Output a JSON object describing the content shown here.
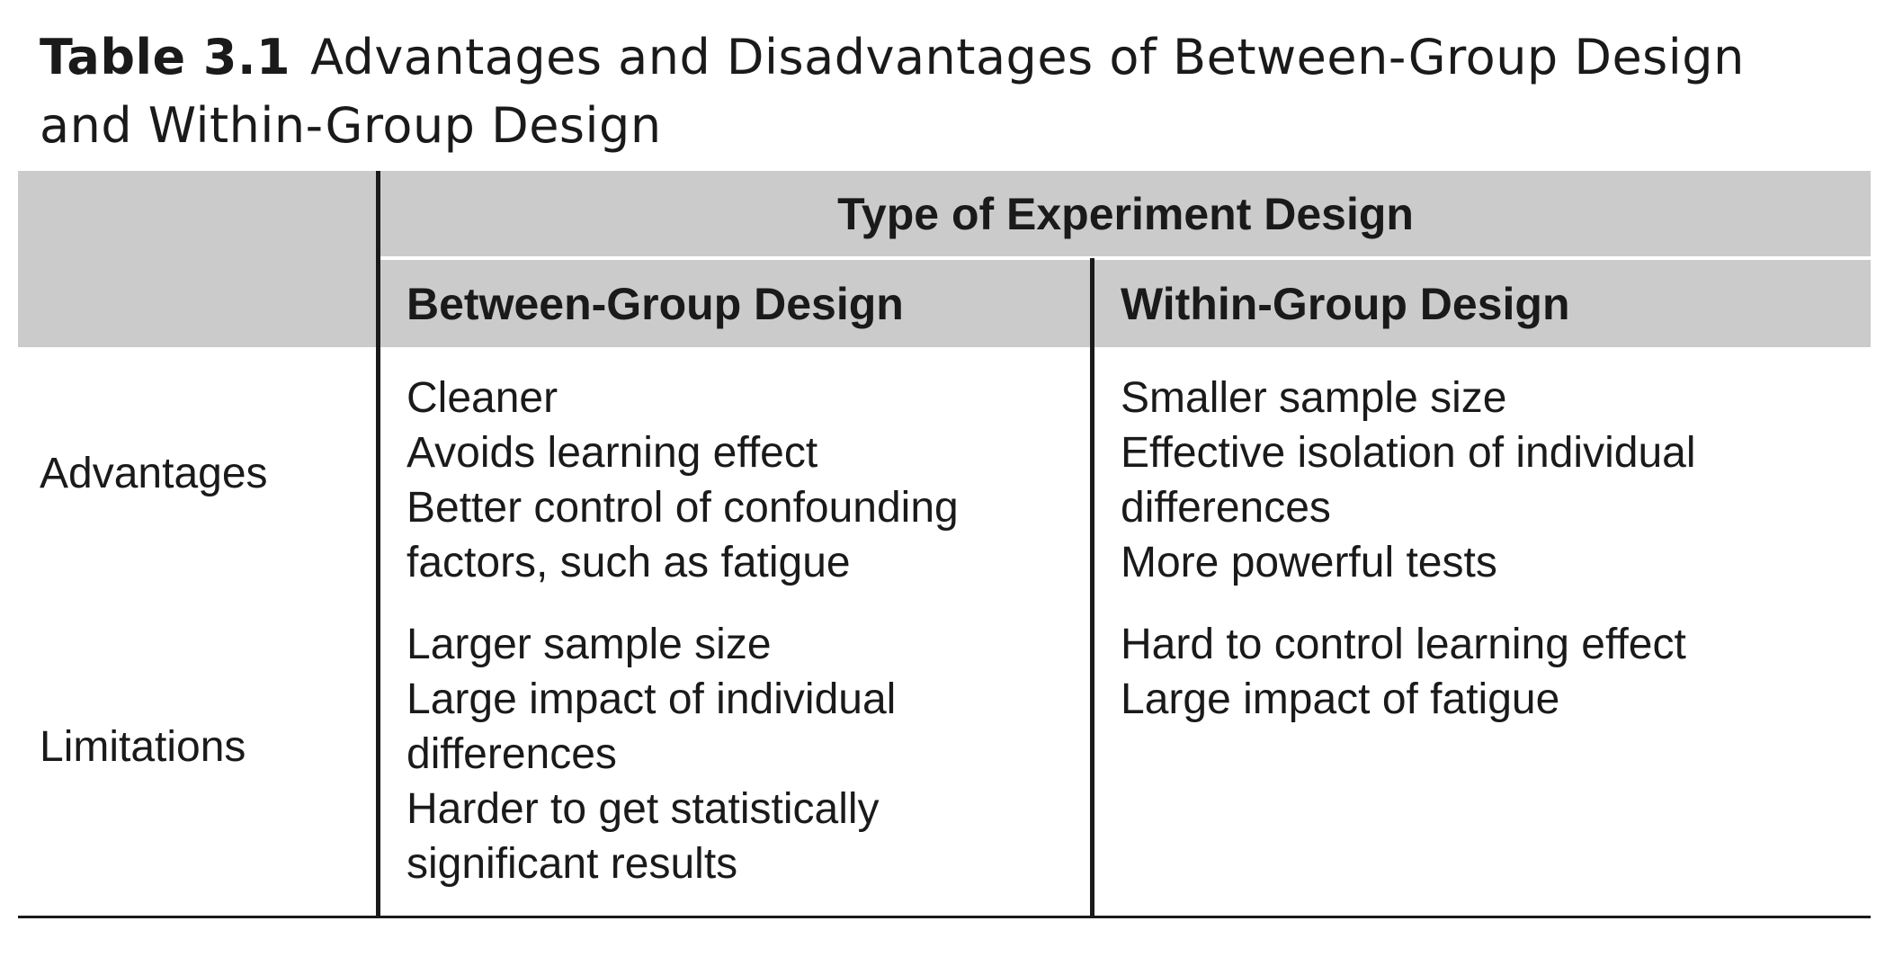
{
  "caption": {
    "label": "Table 3.1",
    "title": "Advantages and Disadvantages of Between-Group Design and Within-Group Design"
  },
  "table": {
    "group_header": "Type of Experiment Design",
    "columns": [
      "Between-Group Design",
      "Within-Group Design"
    ],
    "rows": [
      {
        "label": "Advantages",
        "between": [
          "Cleaner",
          "Avoids learning effect",
          "Better control of confounding factors, such as fatigue"
        ],
        "within": [
          "Smaller sample size",
          "Effective isolation of individual differences",
          "More powerful tests"
        ]
      },
      {
        "label": "Limitations",
        "between": [
          "Larger sample size",
          "Large impact of individual differences",
          "Harder to get statistically significant results"
        ],
        "within": [
          "Hard to control learning effect",
          "Large impact of fatigue"
        ]
      }
    ]
  },
  "colors": {
    "header_band": "#cbcbcb",
    "rule": "#1a1a1a",
    "text": "#1a1a1a"
  }
}
